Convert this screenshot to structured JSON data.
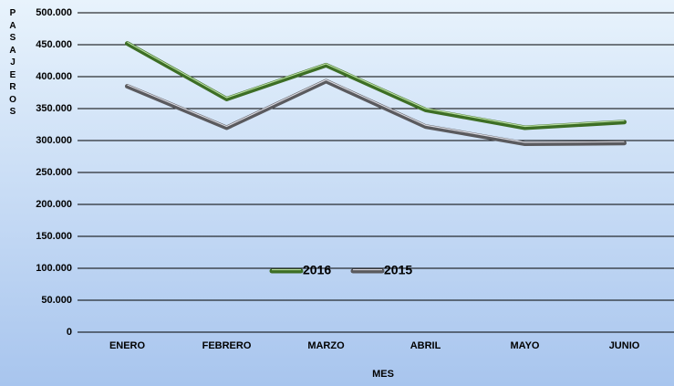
{
  "chart_data": {
    "type": "line",
    "y_label": "PASAJEROS",
    "x_label": "MES",
    "categories": [
      "ENERO",
      "FEBRERO",
      "MARZO",
      "ABRIL",
      "MAYO",
      "JUNIO"
    ],
    "series": [
      {
        "name": "2016",
        "color": "#3d6e25",
        "values": [
          452000,
          365000,
          418000,
          348000,
          320000,
          329000
        ]
      },
      {
        "name": "2015",
        "color": "#5a5a5e",
        "values": [
          385000,
          320000,
          393000,
          322000,
          295000,
          296000
        ]
      }
    ],
    "ylim": [
      0,
      500000
    ],
    "yticks": [
      0,
      {
        "value": 50000,
        "label": "50.000"
      },
      {
        "value": 100000,
        "label": "100.000"
      },
      {
        "value": 150000,
        "label": "150.000"
      },
      {
        "value": 200000,
        "label": "200.000"
      },
      {
        "value": 250000,
        "label": "250.000"
      },
      {
        "value": 300000,
        "label": "300.000"
      },
      {
        "value": 350000,
        "label": "350.000"
      },
      {
        "value": 400000,
        "label": "400.000"
      },
      {
        "value": 450000,
        "label": "450.000"
      },
      {
        "value": 500000,
        "label": "500.000"
      }
    ],
    "grid": true,
    "legend": "center"
  }
}
